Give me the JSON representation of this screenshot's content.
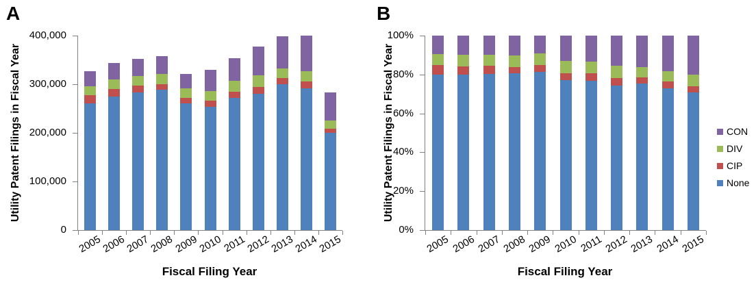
{
  "figure": {
    "years": [
      "2005",
      "2006",
      "2007",
      "2008",
      "2009",
      "2010",
      "2011",
      "2012",
      "2013",
      "2014",
      "2015"
    ],
    "panels": [
      {
        "label": "A",
        "y_axis_title": "Utility Patent Filings in Fiscal Year",
        "x_axis_title": "Fiscal Filing Year",
        "y_tick_labels": [
          "400,000",
          "300,000",
          "200,000",
          "100,000",
          "0"
        ]
      },
      {
        "label": "B",
        "y_axis_title": "Utility Patent Filings in Fiscal Year",
        "x_axis_title": "Fiscal Filing Year",
        "y_tick_labels": [
          "100%",
          "80%",
          "60%",
          "40%",
          "20%",
          "0%"
        ]
      }
    ],
    "colors": {
      "None": "#4F81BD",
      "CIP": "#C0504D",
      "DIV": "#9BBB59",
      "CON": "#8064A2",
      "axis": "#808080",
      "text": "#000000"
    },
    "legend": {
      "items": [
        {
          "label": "CON",
          "color": "#8064A2"
        },
        {
          "label": "DIV",
          "color": "#9BBB59"
        },
        {
          "label": "CIP",
          "color": "#C0504D"
        },
        {
          "label": "None",
          "color": "#4F81BD"
        }
      ]
    }
  },
  "chart_data": [
    {
      "panel": "A",
      "type": "bar",
      "stacked": true,
      "normalize_to_100": false,
      "title": "A",
      "xlabel": "Fiscal Filing Year",
      "ylabel": "Utility Patent Filings in Fiscal Year",
      "ylim": [
        0,
        400000
      ],
      "y_tick_step": 100000,
      "grid": false,
      "legend_position": "none",
      "categories": [
        "2005",
        "2006",
        "2007",
        "2008",
        "2009",
        "2010",
        "2011",
        "2012",
        "2013",
        "2014",
        "2015"
      ],
      "series": [
        {
          "name": "None",
          "color": "#4F81BD",
          "values": [
            261000,
            275000,
            283000,
            289000,
            261000,
            254000,
            272000,
            280000,
            300000,
            292000,
            200000
          ]
        },
        {
          "name": "CIP",
          "color": "#C0504D",
          "values": [
            16000,
            15000,
            14000,
            11000,
            11000,
            12000,
            13000,
            15000,
            12000,
            14000,
            9000
          ]
        },
        {
          "name": "DIV",
          "color": "#9BBB59",
          "values": [
            19000,
            20000,
            20000,
            21000,
            19000,
            20000,
            22000,
            23000,
            21000,
            21000,
            17000
          ]
        },
        {
          "name": "CON",
          "color": "#8064A2",
          "values": [
            31000,
            34000,
            35000,
            37000,
            30000,
            43000,
            47000,
            59000,
            65000,
            73000,
            57000
          ]
        }
      ],
      "totals": [
        327000,
        344000,
        352000,
        358000,
        321000,
        329000,
        354000,
        377000,
        398000,
        400000,
        283000
      ]
    },
    {
      "panel": "B",
      "type": "bar",
      "stacked": true,
      "normalize_to_100": true,
      "unit": "percent",
      "title": "B",
      "xlabel": "Fiscal Filing Year",
      "ylabel": "Utility Patent Filings in Fiscal Year",
      "ylim": [
        0,
        100
      ],
      "y_tick_step": 20,
      "grid": false,
      "legend_position": "right",
      "categories": [
        "2005",
        "2006",
        "2007",
        "2008",
        "2009",
        "2010",
        "2011",
        "2012",
        "2013",
        "2014",
        "2015"
      ],
      "series": [
        {
          "name": "None",
          "color": "#4F81BD",
          "values": [
            79.8,
            79.9,
            80.4,
            80.7,
            81.3,
            77.2,
            76.8,
            74.3,
            75.4,
            73.0,
            70.7
          ]
        },
        {
          "name": "CIP",
          "color": "#C0504D",
          "values": [
            4.9,
            4.4,
            4.0,
            3.1,
            3.4,
            3.6,
            3.7,
            4.0,
            3.0,
            3.5,
            3.2
          ]
        },
        {
          "name": "DIV",
          "color": "#9BBB59",
          "values": [
            5.8,
            5.8,
            5.7,
            5.9,
            5.9,
            6.1,
            6.2,
            6.1,
            5.3,
            5.3,
            6.0
          ]
        },
        {
          "name": "CON",
          "color": "#8064A2",
          "values": [
            9.5,
            9.9,
            9.9,
            10.3,
            9.3,
            13.1,
            13.3,
            15.6,
            16.3,
            18.3,
            20.1
          ]
        }
      ]
    }
  ]
}
